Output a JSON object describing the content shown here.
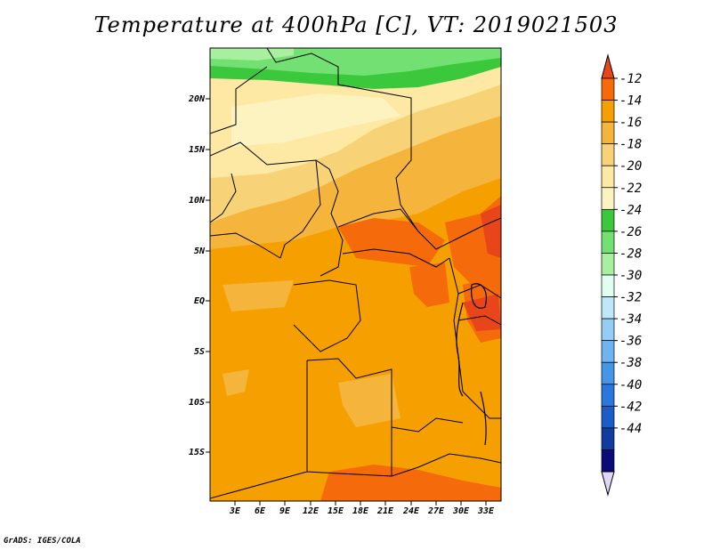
{
  "title": "Temperature at 400hPa [C], VT: 2019021503",
  "credit": "GrADS: IGES/COLA",
  "y_axis_labels": [
    "20N",
    "15N",
    "10N",
    "5N",
    "EQ",
    "5S",
    "10S",
    "15S"
  ],
  "x_axis_labels": [
    "3E",
    "6E",
    "9E",
    "12E",
    "15E",
    "18E",
    "21E",
    "24E",
    "27E",
    "30E",
    "33E"
  ],
  "colorbar": {
    "labels": [
      "-12",
      "-14",
      "-16",
      "-18",
      "-20",
      "-22",
      "-24",
      "-26",
      "-28",
      "-30",
      "-32",
      "-34",
      "-36",
      "-38",
      "-40",
      "-42",
      "-44"
    ],
    "colors": [
      "#e8461a",
      "#f56a0a",
      "#f5a000",
      "#f5b53c",
      "#f8d277",
      "#fde9a3",
      "#fcf3c1",
      "#3cc83c",
      "#72e072",
      "#a8f0a0",
      "#e0fff0",
      "#c0e6fa",
      "#96cdf5",
      "#6eb4f0",
      "#4696e6",
      "#2a78dc",
      "#1a5cc8",
      "#103ca0",
      "#0a0a78",
      "#dcd8f5"
    ]
  },
  "fields": {
    "yellow": "#fde9a3",
    "pale": "#fcf3c1",
    "orange_light": "#f5b53c",
    "orange": "#f5a000",
    "dark_orange": "#f56a0a",
    "red_orange": "#e8461a",
    "green": "#3cc83c",
    "light_green": "#72e072",
    "pale_green": "#a8f0a0"
  }
}
